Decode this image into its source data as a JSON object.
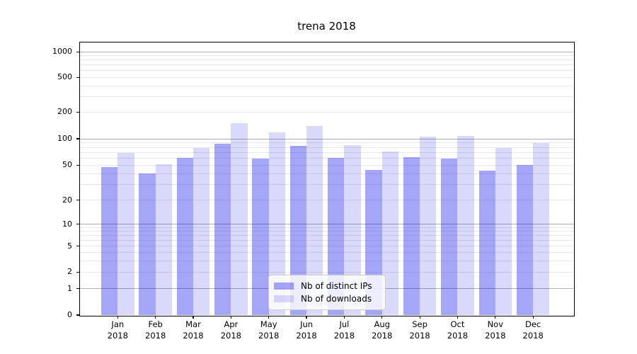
{
  "title": "trena 2018",
  "chart_data": {
    "type": "bar",
    "title": "trena 2018",
    "xlabel": "",
    "ylabel": "",
    "yscale": "symlog",
    "yticks": [
      0,
      1,
      2,
      5,
      10,
      20,
      50,
      100,
      200,
      500,
      1000
    ],
    "ylim": [
      0,
      1400
    ],
    "grid": "both",
    "legend_position": "lower-center",
    "categories": [
      "Jan 2018",
      "Feb 2018",
      "Mar 2018",
      "Apr 2018",
      "May 2018",
      "Jun 2018",
      "Jul 2018",
      "Aug 2018",
      "Sep 2018",
      "Oct 2018",
      "Nov 2018",
      "Dec 2018"
    ],
    "series": [
      {
        "name": "Nb of distinct IPs",
        "color": "rgba(0,0,235,0.35)",
        "values": [
          48,
          40,
          61,
          88,
          59,
          83,
          60,
          44,
          62,
          59,
          43,
          50
        ]
      },
      {
        "name": "Nb of downloads",
        "color": "rgba(0,0,235,0.15)",
        "values": [
          69,
          51,
          78,
          150,
          118,
          138,
          84,
          72,
          106,
          107,
          79,
          90
        ]
      }
    ]
  },
  "colors": {
    "background": "#ffffff",
    "axis": "#000000",
    "grid_major": "#b0b0b0",
    "grid_minor": "#e7e7e7",
    "legend_border": "#cccccc",
    "legend_bg": "rgba(255,255,255,0.8)",
    "text": "#000000"
  }
}
